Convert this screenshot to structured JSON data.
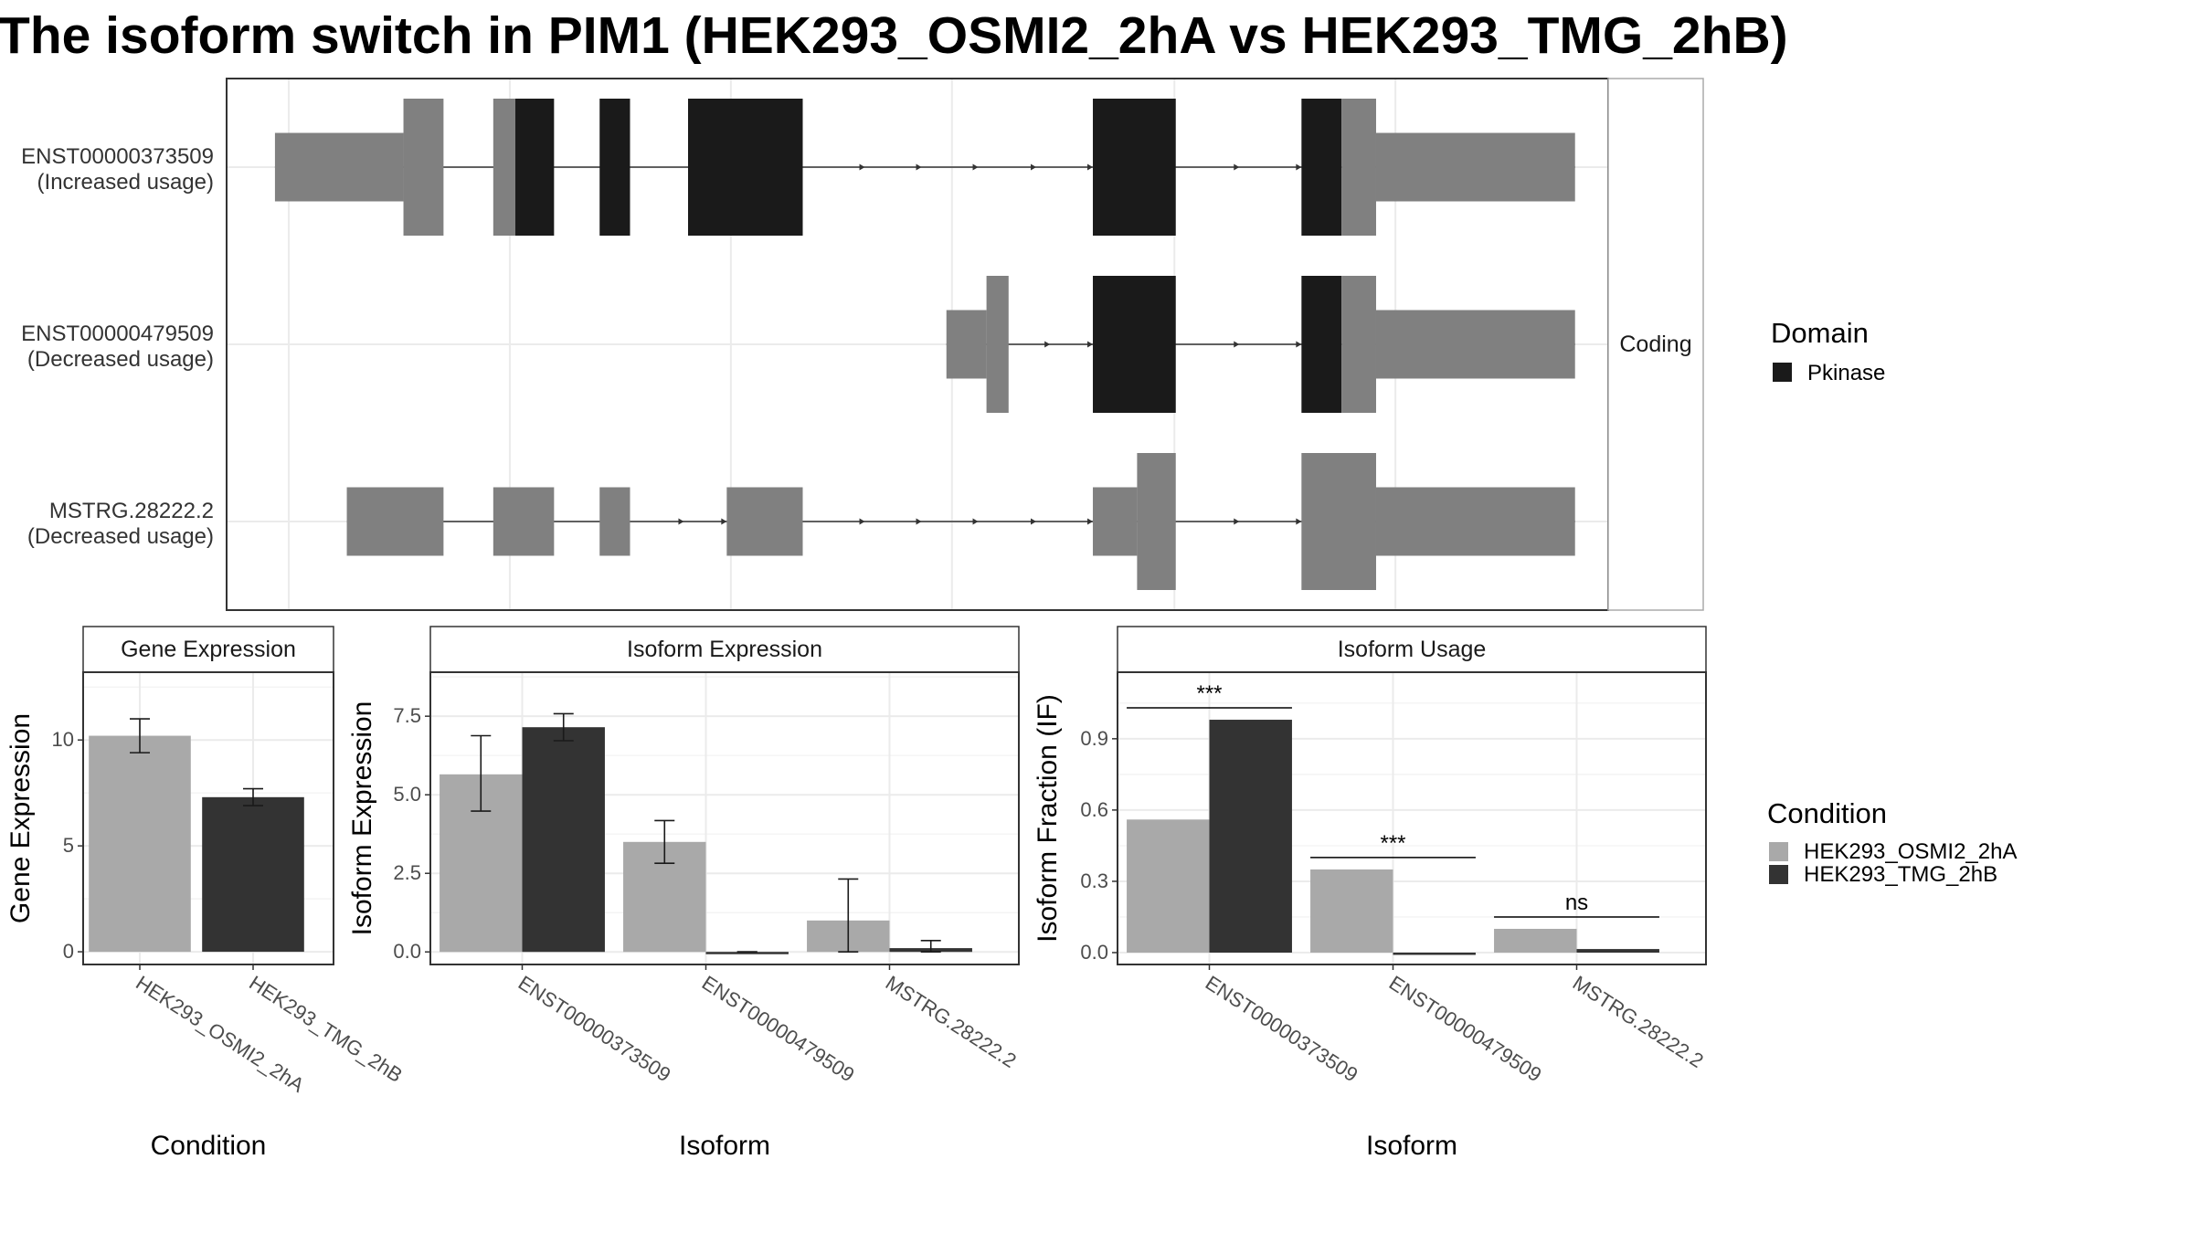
{
  "title": "The isoform switch in PIM1 (HEK293_OSMI2_2hA vs HEK293_TMG_2hB)",
  "colors": {
    "domain_pkinase": "#1a1a1a",
    "utr_noncoding": "#808080",
    "condition_a": "#a9a9a9",
    "condition_b": "#333333",
    "grid": "#ebebeb",
    "panel_border": "#333333"
  },
  "chart_data": [
    {
      "type": "gene_structure",
      "facet_label": "Coding",
      "domain_legend": {
        "title": "Domain",
        "entries": [
          "Pkinase"
        ]
      },
      "xlim": [
        0,
        1000
      ],
      "transcripts": [
        {
          "name": "ENST00000373509",
          "status": "(Increased usage)",
          "segments": [
            {
              "start": 35,
              "end": 128,
              "kind": "utr",
              "color": "utr_noncoding"
            },
            {
              "start": 128,
              "end": 157,
              "kind": "cds",
              "color": "utr_noncoding"
            },
            {
              "start": 193,
              "end": 209,
              "kind": "cds",
              "color": "utr_noncoding"
            },
            {
              "start": 209,
              "end": 237,
              "kind": "cds",
              "color": "domain_pkinase"
            },
            {
              "start": 270,
              "end": 292,
              "kind": "cds",
              "color": "domain_pkinase"
            },
            {
              "start": 334,
              "end": 417,
              "kind": "cds",
              "color": "domain_pkinase"
            },
            {
              "start": 627,
              "end": 687,
              "kind": "cds",
              "color": "domain_pkinase"
            },
            {
              "start": 778,
              "end": 807,
              "kind": "cds",
              "color": "domain_pkinase"
            },
            {
              "start": 807,
              "end": 832,
              "kind": "cds",
              "color": "utr_noncoding"
            },
            {
              "start": 832,
              "end": 976,
              "kind": "utr",
              "color": "utr_noncoding"
            }
          ],
          "arrows": [
            462,
            503,
            544,
            586,
            627,
            733,
            778
          ]
        },
        {
          "name": "ENST00000479509",
          "status": "(Decreased usage)",
          "segments": [
            {
              "start": 521,
              "end": 550,
              "kind": "utr",
              "color": "utr_noncoding"
            },
            {
              "start": 550,
              "end": 566,
              "kind": "cds",
              "color": "utr_noncoding"
            },
            {
              "start": 627,
              "end": 687,
              "kind": "cds",
              "color": "domain_pkinase"
            },
            {
              "start": 778,
              "end": 807,
              "kind": "cds",
              "color": "domain_pkinase"
            },
            {
              "start": 807,
              "end": 832,
              "kind": "cds",
              "color": "utr_noncoding"
            },
            {
              "start": 832,
              "end": 976,
              "kind": "utr",
              "color": "utr_noncoding"
            }
          ],
          "arrows": [
            596,
            627,
            733,
            778
          ]
        },
        {
          "name": "MSTRG.28222.2",
          "status": "(Decreased usage)",
          "segments": [
            {
              "start": 87,
              "end": 157,
              "kind": "utr",
              "color": "utr_noncoding"
            },
            {
              "start": 193,
              "end": 237,
              "kind": "utr",
              "color": "utr_noncoding"
            },
            {
              "start": 270,
              "end": 292,
              "kind": "utr",
              "color": "utr_noncoding"
            },
            {
              "start": 362,
              "end": 417,
              "kind": "utr",
              "color": "utr_noncoding"
            },
            {
              "start": 627,
              "end": 659,
              "kind": "utr",
              "color": "utr_noncoding"
            },
            {
              "start": 659,
              "end": 687,
              "kind": "cds",
              "color": "utr_noncoding"
            },
            {
              "start": 778,
              "end": 832,
              "kind": "cds",
              "color": "utr_noncoding"
            },
            {
              "start": 832,
              "end": 976,
              "kind": "utr",
              "color": "utr_noncoding"
            }
          ],
          "arrows": [
            331,
            362,
            462,
            503,
            544,
            586,
            627,
            733,
            778
          ]
        }
      ]
    },
    {
      "type": "bar",
      "strip": "Gene Expression",
      "xlabel": "Condition",
      "ylabel": "Gene Expression",
      "categories": [
        "HEK293_OSMI2_2hA",
        "HEK293_TMG_2hB"
      ],
      "values": [
        10.2,
        7.3
      ],
      "errors": [
        [
          9.4,
          11.0
        ],
        [
          6.9,
          7.7
        ]
      ],
      "ylim": [
        -0.6,
        13.2
      ],
      "ticks": [
        0,
        5,
        10
      ],
      "tick_labels": [
        "0",
        "5",
        "10"
      ],
      "grid": true
    },
    {
      "type": "bar",
      "strip": "Isoform Expression",
      "xlabel": "Isoform",
      "ylabel": "Isoform Expression",
      "categories": [
        "ENST00000373509",
        "ENST00000479509",
        "MSTRG.28222.2"
      ],
      "series": [
        {
          "name": "HEK293_OSMI2_2hA",
          "values": [
            5.65,
            3.5,
            1.0
          ],
          "errors": [
            [
              4.48,
              6.88
            ],
            [
              2.82,
              4.18
            ],
            [
              0.0,
              2.32
            ]
          ]
        },
        {
          "name": "HEK293_TMG_2hB",
          "values": [
            7.15,
            0.0,
            0.12
          ],
          "errors": [
            [
              6.72,
              7.58
            ],
            [
              0.0,
              0.0
            ],
            [
              0.0,
              0.36
            ]
          ]
        }
      ],
      "ylim": [
        -0.4,
        8.9
      ],
      "ticks": [
        0,
        2.5,
        5,
        7.5
      ],
      "tick_labels": [
        "0.0",
        "2.5",
        "5.0",
        "7.5"
      ],
      "grid": true
    },
    {
      "type": "bar",
      "strip": "Isoform Usage",
      "xlabel": "Isoform",
      "ylabel": "Isoform Fraction (IF)",
      "categories": [
        "ENST00000373509",
        "ENST00000479509",
        "MSTRG.28222.2"
      ],
      "series": [
        {
          "name": "HEK293_OSMI2_2hA",
          "values": [
            0.56,
            0.35,
            0.1
          ]
        },
        {
          "name": "HEK293_TMG_2hB",
          "values": [
            0.98,
            0.0,
            0.015
          ]
        }
      ],
      "significance": [
        {
          "label": "***",
          "y": 1.03
        },
        {
          "label": "***",
          "y": 0.4
        },
        {
          "label": "ns",
          "y": 0.15
        }
      ],
      "ylim": [
        -0.05,
        1.18
      ],
      "ticks": [
        0,
        0.3,
        0.6,
        0.9
      ],
      "tick_labels": [
        "0.0",
        "0.3",
        "0.6",
        "0.9"
      ],
      "grid": true
    }
  ],
  "condition_legend": {
    "title": "Condition",
    "entries": [
      "HEK293_OSMI2_2hA",
      "HEK293_TMG_2hB"
    ]
  }
}
